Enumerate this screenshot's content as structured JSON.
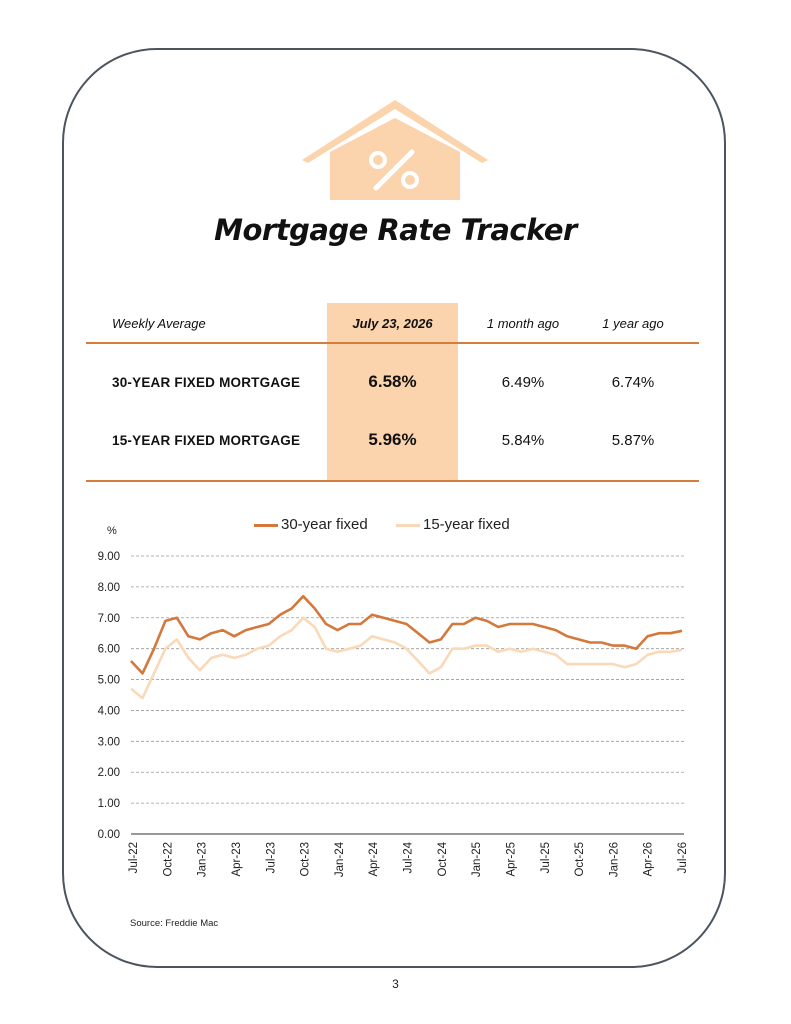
{
  "header": {
    "title": "Mortgage Rate Tracker"
  },
  "table": {
    "col_label": "Weekly Average",
    "col_current": "July 23, 2026",
    "col_month": "1 month ago",
    "col_year": "1 year ago",
    "rows": [
      {
        "label": "30-YEAR FIXED MORTGAGE",
        "current": "6.58%",
        "month": "6.49%",
        "year": "6.74%"
      },
      {
        "label": "15-YEAR FIXED MORTGAGE",
        "current": "5.96%",
        "month": "5.84%",
        "year": "5.87%"
      }
    ]
  },
  "colors": {
    "accent": "#d4783c",
    "accent_light": "#fbd3ac",
    "frame": "#4a5560"
  },
  "chart_data": {
    "type": "line",
    "ylabel": "%",
    "ylim": [
      0,
      9
    ],
    "yticks": [
      "9.00",
      "8.00",
      "7.00",
      "6.00",
      "5.00",
      "4.00",
      "3.00",
      "2.00",
      "1.00",
      "0.00"
    ],
    "x_tick_labels": [
      "Jul-22",
      "Oct-22",
      "Jan-23",
      "Apr-23",
      "Jul-23",
      "Oct-23",
      "Jan-24",
      "Apr-24",
      "Jul-24",
      "Oct-24",
      "Jan-25",
      "Apr-25",
      "Jul-25",
      "Oct-25",
      "Jan-26",
      "Apr-26",
      "Jul-26"
    ],
    "grid": "horizontal dashed",
    "legend_position": "top-center",
    "series": [
      {
        "name": "30-year fixed",
        "color": "#d4783c",
        "x": [
          "2022-07",
          "2022-08",
          "2022-09",
          "2022-10",
          "2022-11",
          "2022-12",
          "2023-01",
          "2023-02",
          "2023-03",
          "2023-04",
          "2023-05",
          "2023-06",
          "2023-07",
          "2023-08",
          "2023-09",
          "2023-10",
          "2023-11",
          "2023-12",
          "2024-01",
          "2024-02",
          "2024-03",
          "2024-04",
          "2024-05",
          "2024-06",
          "2024-07",
          "2024-08",
          "2024-09",
          "2024-10",
          "2024-11",
          "2024-12",
          "2025-01",
          "2025-02",
          "2025-03",
          "2025-04",
          "2025-05",
          "2025-06",
          "2025-07",
          "2025-08",
          "2025-09",
          "2025-10",
          "2025-11",
          "2025-12",
          "2026-01",
          "2026-02",
          "2026-03",
          "2026-04",
          "2026-05",
          "2026-06",
          "2026-07"
        ],
        "values": [
          5.6,
          5.2,
          6.0,
          6.9,
          7.0,
          6.4,
          6.3,
          6.5,
          6.6,
          6.4,
          6.6,
          6.7,
          6.8,
          7.1,
          7.3,
          7.7,
          7.3,
          6.8,
          6.6,
          6.8,
          6.8,
          7.1,
          7.0,
          6.9,
          6.8,
          6.5,
          6.2,
          6.3,
          6.8,
          6.8,
          7.0,
          6.9,
          6.7,
          6.8,
          6.8,
          6.8,
          6.7,
          6.6,
          6.4,
          6.3,
          6.2,
          6.2,
          6.1,
          6.1,
          6.0,
          6.4,
          6.5,
          6.5,
          6.58
        ]
      },
      {
        "name": "15-year fixed",
        "color": "#f9d9b8",
        "x": [
          "2022-07",
          "2022-08",
          "2022-09",
          "2022-10",
          "2022-11",
          "2022-12",
          "2023-01",
          "2023-02",
          "2023-03",
          "2023-04",
          "2023-05",
          "2023-06",
          "2023-07",
          "2023-08",
          "2023-09",
          "2023-10",
          "2023-11",
          "2023-12",
          "2024-01",
          "2024-02",
          "2024-03",
          "2024-04",
          "2024-05",
          "2024-06",
          "2024-07",
          "2024-08",
          "2024-09",
          "2024-10",
          "2024-11",
          "2024-12",
          "2025-01",
          "2025-02",
          "2025-03",
          "2025-04",
          "2025-05",
          "2025-06",
          "2025-07",
          "2025-08",
          "2025-09",
          "2025-10",
          "2025-11",
          "2025-12",
          "2026-01",
          "2026-02",
          "2026-03",
          "2026-04",
          "2026-05",
          "2026-06",
          "2026-07"
        ],
        "values": [
          4.7,
          4.4,
          5.2,
          6.0,
          6.3,
          5.7,
          5.3,
          5.7,
          5.8,
          5.7,
          5.8,
          6.0,
          6.1,
          6.4,
          6.6,
          7.0,
          6.7,
          6.0,
          5.9,
          6.0,
          6.1,
          6.4,
          6.3,
          6.2,
          6.0,
          5.6,
          5.2,
          5.4,
          6.0,
          6.0,
          6.1,
          6.1,
          5.9,
          6.0,
          5.9,
          6.0,
          5.9,
          5.8,
          5.5,
          5.5,
          5.5,
          5.5,
          5.5,
          5.4,
          5.5,
          5.8,
          5.9,
          5.9,
          5.96
        ]
      }
    ]
  },
  "footer": {
    "source": "Source: Freddie Mac",
    "page_number": "3"
  }
}
